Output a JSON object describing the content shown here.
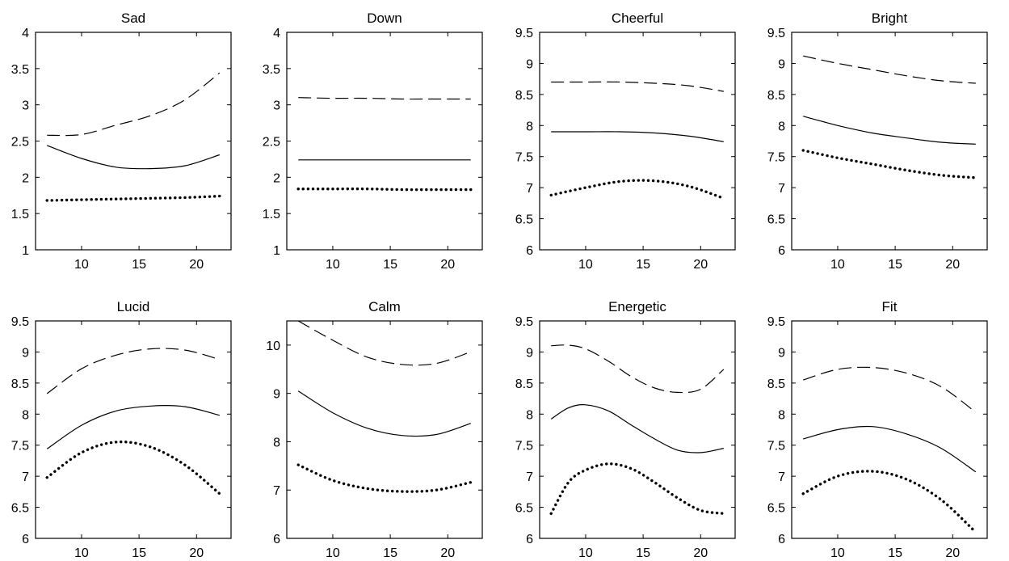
{
  "chart_data": [
    {
      "type": "line",
      "title": "Sad",
      "xticks": [
        "10",
        "15",
        "20"
      ],
      "yticks": [
        "1",
        "1.5",
        "2",
        "2.5",
        "3",
        "3.5",
        "4"
      ],
      "xlim": [
        6,
        23
      ],
      "ylim": [
        1,
        4
      ],
      "x": [
        7,
        10,
        13,
        16,
        19,
        22
      ],
      "series": [
        {
          "style": "dashed",
          "values": [
            2.58,
            2.59,
            2.72,
            2.85,
            3.07,
            3.44
          ]
        },
        {
          "style": "solid",
          "values": [
            2.44,
            2.26,
            2.14,
            2.12,
            2.16,
            2.31
          ]
        },
        {
          "style": "dotted",
          "values": [
            1.68,
            1.69,
            1.7,
            1.71,
            1.72,
            1.74
          ]
        }
      ]
    },
    {
      "type": "line",
      "title": "Down",
      "xticks": [
        "10",
        "15",
        "20"
      ],
      "yticks": [
        "1",
        "1.5",
        "2",
        "2.5",
        "3",
        "3.5",
        "4"
      ],
      "xlim": [
        6,
        23
      ],
      "ylim": [
        1,
        4
      ],
      "x": [
        7,
        10,
        13,
        16,
        19,
        22
      ],
      "series": [
        {
          "style": "dashed",
          "values": [
            3.1,
            3.09,
            3.09,
            3.08,
            3.08,
            3.08
          ]
        },
        {
          "style": "solid",
          "values": [
            2.24,
            2.24,
            2.24,
            2.24,
            2.24,
            2.24
          ]
        },
        {
          "style": "dotted",
          "values": [
            1.84,
            1.84,
            1.84,
            1.83,
            1.83,
            1.83
          ]
        }
      ]
    },
    {
      "type": "line",
      "title": "Cheerful",
      "xticks": [
        "10",
        "15",
        "20"
      ],
      "yticks": [
        "6",
        "6.5",
        "7",
        "7.5",
        "8",
        "8.5",
        "9",
        "9.5"
      ],
      "xlim": [
        6,
        23
      ],
      "ylim": [
        6,
        9.5
      ],
      "x": [
        7,
        10,
        13,
        16,
        19,
        22
      ],
      "series": [
        {
          "style": "dashed",
          "values": [
            8.7,
            8.7,
            8.7,
            8.68,
            8.64,
            8.55
          ]
        },
        {
          "style": "solid",
          "values": [
            7.9,
            7.9,
            7.9,
            7.88,
            7.83,
            7.74
          ]
        },
        {
          "style": "dotted",
          "values": [
            6.88,
            7.0,
            7.1,
            7.11,
            7.02,
            6.83
          ]
        }
      ]
    },
    {
      "type": "line",
      "title": "Bright",
      "xticks": [
        "10",
        "15",
        "20"
      ],
      "yticks": [
        "6",
        "6.5",
        "7",
        "7.5",
        "8",
        "8.5",
        "9",
        "9.5"
      ],
      "xlim": [
        6,
        23
      ],
      "ylim": [
        6,
        9.5
      ],
      "x": [
        7,
        10,
        13,
        16,
        19,
        22
      ],
      "series": [
        {
          "style": "dashed",
          "values": [
            9.12,
            9.0,
            8.9,
            8.8,
            8.72,
            8.68
          ]
        },
        {
          "style": "solid",
          "values": [
            8.15,
            8.0,
            7.88,
            7.8,
            7.73,
            7.7
          ]
        },
        {
          "style": "dotted",
          "values": [
            7.6,
            7.48,
            7.38,
            7.28,
            7.2,
            7.16
          ]
        }
      ]
    },
    {
      "type": "line",
      "title": "Lucid",
      "xticks": [
        "10",
        "15",
        "20"
      ],
      "yticks": [
        "6",
        "6.5",
        "7",
        "7.5",
        "8",
        "8.5",
        "9",
        "9.5"
      ],
      "xlim": [
        6,
        23
      ],
      "ylim": [
        6,
        9.5
      ],
      "x": [
        7,
        10,
        13,
        16,
        19,
        22
      ],
      "series": [
        {
          "style": "dashed",
          "values": [
            8.33,
            8.73,
            8.95,
            9.05,
            9.03,
            8.88
          ]
        },
        {
          "style": "solid",
          "values": [
            7.44,
            7.82,
            8.05,
            8.13,
            8.12,
            7.98
          ]
        },
        {
          "style": "dotted",
          "values": [
            6.98,
            7.38,
            7.55,
            7.47,
            7.18,
            6.72
          ]
        }
      ]
    },
    {
      "type": "line",
      "title": "Calm",
      "xticks": [
        "10",
        "15",
        "20"
      ],
      "yticks": [
        "6",
        "7",
        "8",
        "9",
        "10"
      ],
      "xlim": [
        6,
        23
      ],
      "ylim": [
        6,
        10.5
      ],
      "x": [
        7,
        10,
        13,
        16,
        19,
        22
      ],
      "series": [
        {
          "style": "dashed",
          "values": [
            10.5,
            10.1,
            9.75,
            9.6,
            9.62,
            9.86
          ]
        },
        {
          "style": "solid",
          "values": [
            9.05,
            8.6,
            8.28,
            8.13,
            8.15,
            8.38
          ]
        },
        {
          "style": "dotted",
          "values": [
            7.52,
            7.2,
            7.03,
            6.97,
            7.0,
            7.16
          ]
        }
      ]
    },
    {
      "type": "line",
      "title": "Energetic",
      "xticks": [
        "10",
        "15",
        "20"
      ],
      "yticks": [
        "6",
        "6.5",
        "7",
        "7.5",
        "8",
        "8.5",
        "9",
        "9.5"
      ],
      "xlim": [
        6,
        23
      ],
      "ylim": [
        6,
        9.5
      ],
      "x": [
        7,
        8.5,
        10,
        12,
        14,
        16,
        18,
        20,
        22
      ],
      "series": [
        {
          "style": "dashed",
          "values": [
            9.1,
            9.11,
            9.05,
            8.85,
            8.6,
            8.42,
            8.35,
            8.4,
            8.72
          ]
        },
        {
          "style": "solid",
          "values": [
            7.92,
            8.1,
            8.15,
            8.05,
            7.82,
            7.6,
            7.42,
            7.38,
            7.45
          ]
        },
        {
          "style": "dotted",
          "values": [
            6.4,
            6.9,
            7.1,
            7.2,
            7.12,
            6.9,
            6.65,
            6.45,
            6.4
          ]
        }
      ]
    },
    {
      "type": "line",
      "title": "Fit",
      "xticks": [
        "10",
        "15",
        "20"
      ],
      "yticks": [
        "6",
        "6.5",
        "7",
        "7.5",
        "8",
        "8.5",
        "9",
        "9.5"
      ],
      "xlim": [
        6,
        23
      ],
      "ylim": [
        6,
        9.5
      ],
      "x": [
        7,
        10,
        13,
        16,
        19,
        22
      ],
      "series": [
        {
          "style": "dashed",
          "values": [
            8.55,
            8.72,
            8.75,
            8.66,
            8.44,
            8.03
          ]
        },
        {
          "style": "solid",
          "values": [
            7.6,
            7.75,
            7.8,
            7.68,
            7.45,
            7.07
          ]
        },
        {
          "style": "dotted",
          "values": [
            6.72,
            7.0,
            7.08,
            6.95,
            6.62,
            6.1
          ]
        }
      ]
    }
  ]
}
